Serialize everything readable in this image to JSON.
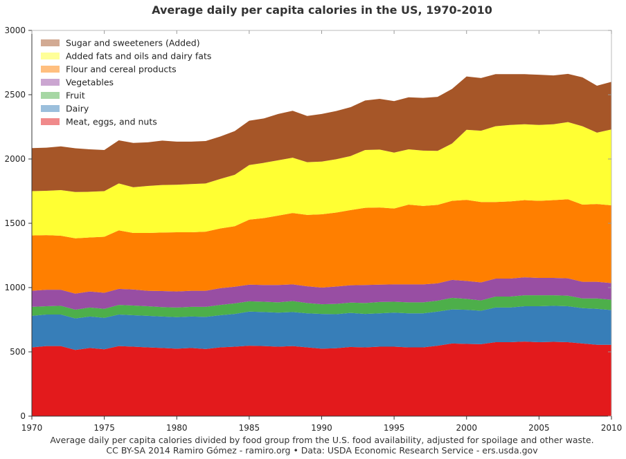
{
  "chart_data": {
    "type": "area",
    "stacked": true,
    "title": "Average daily per capita calories in the US, 1970-2010",
    "xlabel": "",
    "ylabel": "",
    "xlim": [
      1970,
      2010
    ],
    "ylim": [
      0,
      3000
    ],
    "x": [
      1970,
      1971,
      1972,
      1973,
      1974,
      1975,
      1976,
      1977,
      1978,
      1979,
      1980,
      1981,
      1982,
      1983,
      1984,
      1985,
      1986,
      1987,
      1988,
      1989,
      1990,
      1991,
      1992,
      1993,
      1994,
      1995,
      1996,
      1997,
      1998,
      1999,
      2000,
      2001,
      2002,
      2003,
      2004,
      2005,
      2006,
      2007,
      2008,
      2009,
      2010
    ],
    "x_ticks": [
      "1970",
      "1975",
      "1980",
      "1985",
      "1990",
      "1995",
      "2000",
      "2005",
      "2010"
    ],
    "y_ticks": [
      "0",
      "500",
      "1000",
      "1500",
      "2000",
      "2500",
      "3000"
    ],
    "legend_position": "top-left",
    "series": [
      {
        "name": "Meat, eggs, and nuts",
        "color": "#e31a1c",
        "legend_color": "#f08a8b",
        "values": [
          535,
          545,
          545,
          515,
          530,
          520,
          545,
          540,
          535,
          530,
          525,
          530,
          522,
          535,
          540,
          548,
          545,
          540,
          545,
          535,
          525,
          528,
          538,
          535,
          540,
          540,
          535,
          535,
          548,
          565,
          562,
          560,
          575,
          575,
          580,
          575,
          578,
          575,
          565,
          555,
          555
        ]
      },
      {
        "name": "Dairy",
        "color": "#377eb8",
        "legend_color": "#9bbfdc",
        "values": [
          245,
          245,
          245,
          245,
          245,
          245,
          245,
          245,
          245,
          245,
          245,
          245,
          250,
          250,
          255,
          265,
          265,
          265,
          265,
          265,
          270,
          265,
          265,
          260,
          260,
          265,
          265,
          265,
          265,
          265,
          265,
          260,
          270,
          270,
          275,
          280,
          280,
          280,
          275,
          280,
          270
        ]
      },
      {
        "name": "Fruit",
        "color": "#4daf4a",
        "legend_color": "#a6d7a4",
        "values": [
          70,
          65,
          68,
          68,
          70,
          70,
          75,
          75,
          75,
          73,
          75,
          75,
          78,
          80,
          82,
          80,
          80,
          80,
          85,
          80,
          75,
          80,
          80,
          85,
          88,
          85,
          85,
          85,
          85,
          90,
          85,
          80,
          85,
          85,
          85,
          85,
          82,
          82,
          75,
          80,
          80
        ]
      },
      {
        "name": "Vegetables",
        "color": "#984ea3",
        "legend_color": "#cba6d1",
        "values": [
          125,
          128,
          125,
          125,
          125,
          125,
          125,
          125,
          120,
          125,
          125,
          125,
          125,
          130,
          130,
          130,
          130,
          135,
          130,
          130,
          130,
          135,
          135,
          140,
          135,
          135,
          140,
          140,
          135,
          140,
          140,
          140,
          140,
          140,
          140,
          135,
          135,
          135,
          130,
          130,
          130
        ]
      },
      {
        "name": "Flour and cereal products",
        "color": "#ff7f00",
        "legend_color": "#ffbf7f",
        "values": [
          430,
          425,
          420,
          430,
          420,
          435,
          455,
          440,
          450,
          455,
          460,
          455,
          460,
          465,
          470,
          505,
          520,
          540,
          555,
          555,
          570,
          575,
          585,
          600,
          600,
          590,
          620,
          610,
          610,
          615,
          630,
          625,
          595,
          600,
          600,
          600,
          605,
          615,
          600,
          605,
          605
        ]
      },
      {
        "name": "Added fats and oils and dairy fats",
        "color": "#ffff33",
        "legend_color": "#ffff99",
        "values": [
          345,
          345,
          355,
          360,
          355,
          355,
          365,
          355,
          365,
          370,
          370,
          375,
          375,
          385,
          400,
          425,
          430,
          430,
          430,
          410,
          410,
          415,
          420,
          450,
          450,
          435,
          430,
          430,
          420,
          445,
          545,
          555,
          590,
          595,
          590,
          590,
          590,
          600,
          610,
          555,
          590
        ]
      },
      {
        "name": "Sugar and sweeteners (Added)",
        "color": "#a65628",
        "legend_color": "#d2aa93",
        "values": [
          335,
          335,
          340,
          340,
          330,
          320,
          335,
          345,
          340,
          345,
          335,
          330,
          330,
          330,
          340,
          345,
          345,
          360,
          365,
          360,
          370,
          375,
          380,
          385,
          395,
          400,
          405,
          410,
          420,
          425,
          415,
          410,
          405,
          395,
          390,
          390,
          380,
          375,
          380,
          365,
          370
        ]
      }
    ],
    "footer_lines": [
      "Average daily per capita calories divided by food group from the U.S. food availability, adjusted for spoilage and other waste.",
      "CC BY-SA 2014 Ramiro Gómez - ramiro.org • Data: USDA Economic Research Service - ers.usda.gov"
    ]
  }
}
